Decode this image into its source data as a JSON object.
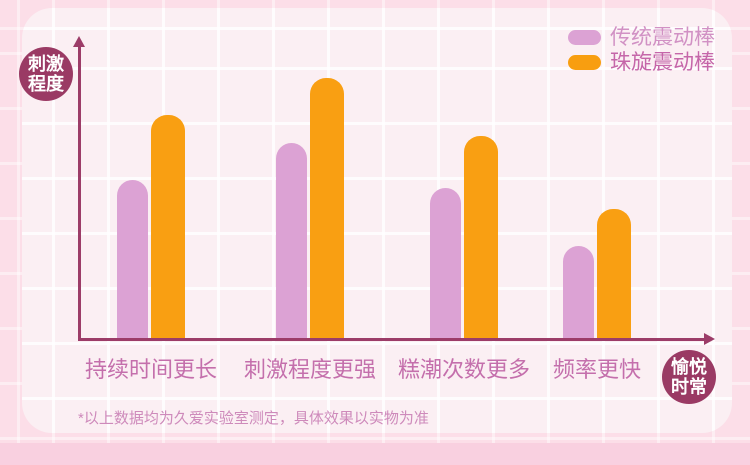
{
  "axis": {
    "y_bubble_line1": "刺激",
    "y_bubble_line2": "程度",
    "x_bubble_line1": "愉悦",
    "x_bubble_line2": "时常"
  },
  "legend": {
    "items": [
      {
        "label": "传统震动棒",
        "color": "#DCA2D4",
        "text_color": "#D191C4"
      },
      {
        "label": "珠旋震动棒",
        "color": "#F89E10",
        "text_color": "#C566A9"
      }
    ]
  },
  "chart_data": {
    "type": "bar",
    "categories": [
      "持续时间更长",
      "刺激程度更强",
      "糕潮次数更多",
      "频率更快"
    ],
    "series": [
      {
        "name": "传统震动棒",
        "color": "#DCA2D4",
        "values": [
          61,
          75,
          58,
          36
        ]
      },
      {
        "name": "珠旋震动棒",
        "color": "#F99F12",
        "values": [
          86,
          100,
          78,
          50
        ]
      }
    ],
    "ylabel": "刺激程度",
    "xlabel": "愉悦时常",
    "ylim": [
      0,
      100
    ],
    "grid": true,
    "legend_position": "top-right",
    "axis_color": "#9C3C68",
    "bubble_color": "#9A3A64"
  },
  "footnote": {
    "text": "*以上数据均为久爱实验室测定，具体效果以实物为准"
  }
}
